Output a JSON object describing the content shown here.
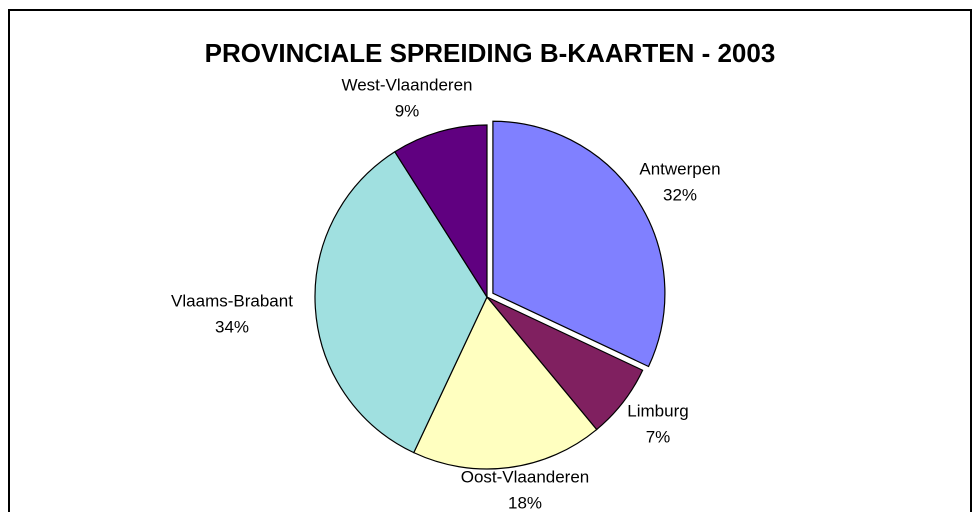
{
  "chart_data": {
    "type": "pie",
    "title": "PROVINCIALE SPREIDING B-KAARTEN - 2003",
    "categories": [
      "Antwerpen",
      "Limburg",
      "Oost-Vlaanderen",
      "Vlaams-Brabant",
      "West-Vlaanderen"
    ],
    "values": [
      32,
      7,
      18,
      34,
      9
    ],
    "value_labels": [
      "32%",
      "7%",
      "18%",
      "34%",
      "9%"
    ],
    "colors": [
      "#8080ff",
      "#802060",
      "#ffffc0",
      "#a0e0e0",
      "#600080"
    ],
    "exploded": [
      true,
      false,
      false,
      false,
      false
    ]
  }
}
